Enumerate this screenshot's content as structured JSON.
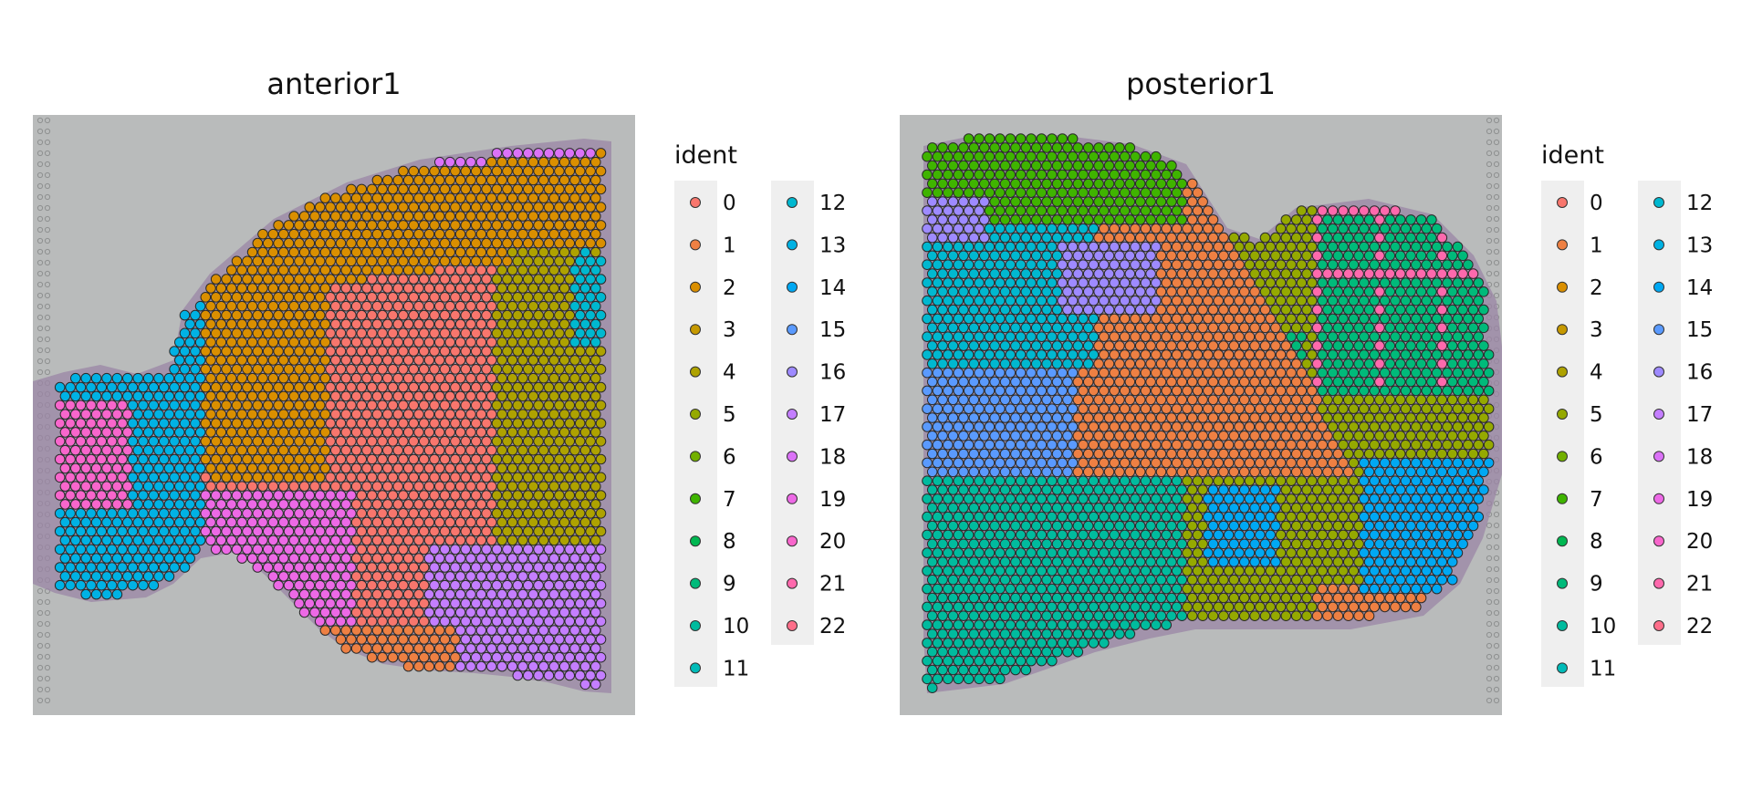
{
  "chart_data": {
    "type": "scatter",
    "title": "",
    "legend": {
      "title": "ident",
      "placement": "right of each panel",
      "entries": [
        "0",
        "1",
        "2",
        "3",
        "4",
        "5",
        "6",
        "7",
        "8",
        "9",
        "10",
        "11",
        "12",
        "13",
        "14",
        "15",
        "16",
        "17",
        "18",
        "19",
        "20",
        "21",
        "22"
      ],
      "colors": [
        "#F8766D",
        "#EE8043",
        "#DA8F00",
        "#C69900",
        "#AEA200",
        "#95A900",
        "#72B000",
        "#3FB400",
        "#00B751",
        "#00BA7A",
        "#00BB9E",
        "#00BBB8",
        "#00B8D0",
        "#00B2E4",
        "#00A8F3",
        "#5A9AFE",
        "#9E8AFF",
        "#C47EFF",
        "#DB72F7",
        "#ED69E6",
        "#F866CC",
        "#FE69AD",
        "#FE6E8A"
      ]
    },
    "panels": [
      {
        "title": "anterior1",
        "background": "tissue image (H&E)",
        "regions": [
          {
            "ident": "2",
            "location": "upper cortex band"
          },
          {
            "ident": "18",
            "location": "outer rim of upper cortex"
          },
          {
            "ident": "0",
            "location": "center"
          },
          {
            "ident": "4",
            "location": "right side"
          },
          {
            "ident": "12",
            "location": "upper right edge"
          },
          {
            "ident": "17",
            "location": "lower right"
          },
          {
            "ident": "19",
            "location": "lower middle"
          },
          {
            "ident": "1",
            "location": "bottom edge"
          },
          {
            "ident": "13",
            "location": "left lobe"
          },
          {
            "ident": "20",
            "location": "left lobe center"
          }
        ]
      },
      {
        "title": "posterior1",
        "background": "tissue image (H&E)",
        "regions": [
          {
            "ident": "7",
            "location": "upper left"
          },
          {
            "ident": "16",
            "location": "upper left lobules"
          },
          {
            "ident": "12",
            "location": "left"
          },
          {
            "ident": "15",
            "location": "left middle"
          },
          {
            "ident": "1",
            "location": "central diagonal band"
          },
          {
            "ident": "10",
            "location": "lower left"
          },
          {
            "ident": "5",
            "location": "right and lower"
          },
          {
            "ident": "9",
            "location": "right upper clusters"
          },
          {
            "ident": "21",
            "location": "cluster outlines on right"
          },
          {
            "ident": "14",
            "location": "lower right"
          }
        ]
      }
    ]
  }
}
